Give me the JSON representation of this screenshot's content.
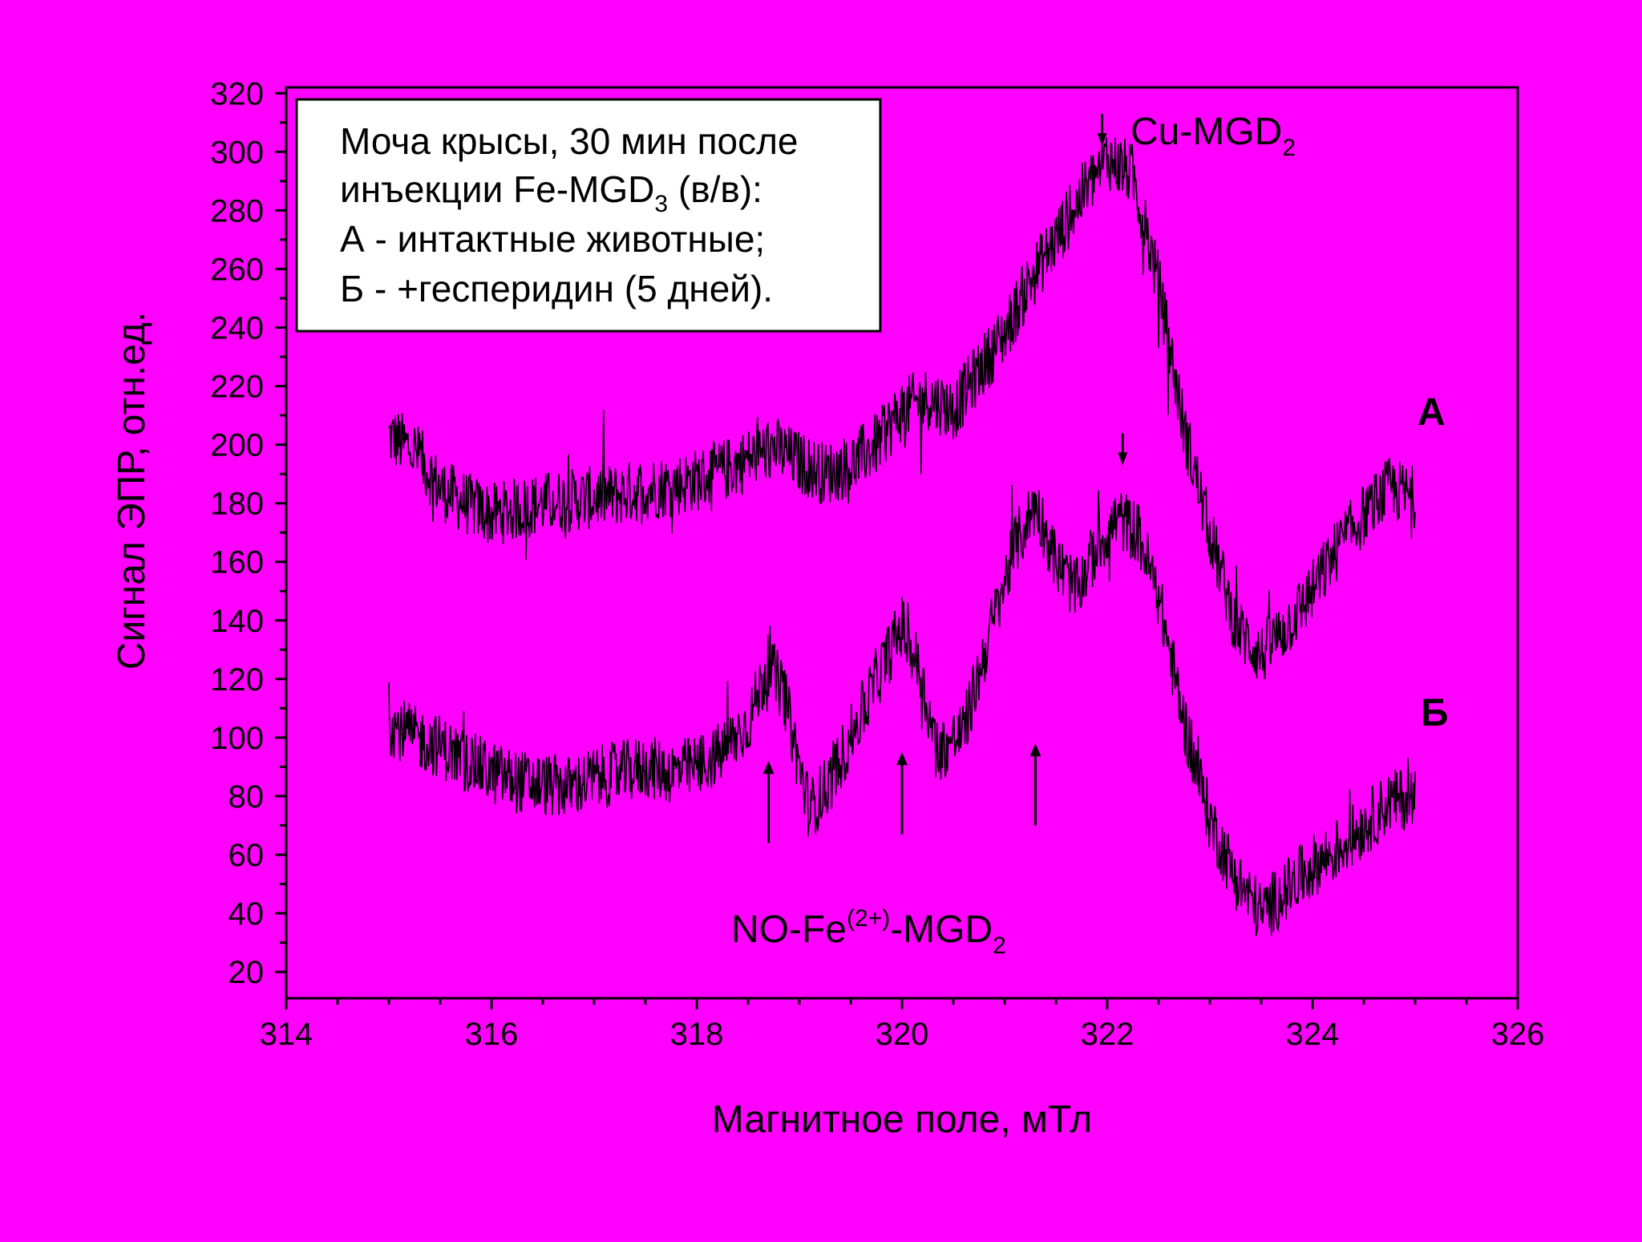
{
  "colors": {
    "background": "#ff00ff",
    "ink": "#000000",
    "legend_box": "#ffffff"
  },
  "chart_data": {
    "type": "line",
    "xlabel": "Магнитное поле, мТл",
    "ylabel": "Сигнал ЭПР, отн.ед.",
    "xlim": [
      314,
      326
    ],
    "ylim": [
      11,
      322
    ],
    "x_ticks": [
      "314",
      "316",
      "318",
      "320",
      "322",
      "324",
      "326"
    ],
    "y_ticks": [
      "20",
      "40",
      "60",
      "80",
      "100",
      "120",
      "140",
      "160",
      "180",
      "200",
      "220",
      "240",
      "260",
      "280",
      "300",
      "320"
    ],
    "grid": false,
    "legend": {
      "placement": "top-left",
      "lines": [
        {
          "text": "Моча крысы, 30 мин после",
          "sub": ""
        },
        {
          "text": "инъекции Fe-MGD",
          "sub": "3",
          "tail": " (в/в):"
        },
        {
          "text": "А - интактные животные;",
          "sub": ""
        },
        {
          "text": "Б - +гесперидин (5 дней).",
          "sub": ""
        }
      ]
    },
    "series": [
      {
        "name": "А",
        "x": [
          315.0,
          315.25,
          315.5,
          315.75,
          316.0,
          316.25,
          316.5,
          316.75,
          317.0,
          317.25,
          317.5,
          317.75,
          318.0,
          318.25,
          318.5,
          318.75,
          319.0,
          319.25,
          319.5,
          319.75,
          320.0,
          320.25,
          320.5,
          320.75,
          321.0,
          321.25,
          321.5,
          321.75,
          322.0,
          322.25,
          322.5,
          322.75,
          323.0,
          323.25,
          323.5,
          323.75,
          324.0,
          324.25,
          324.5,
          324.75,
          325.0
        ],
        "y": [
          203,
          198,
          185,
          180,
          176,
          178,
          180,
          181,
          182,
          183,
          185,
          186,
          188,
          191,
          195,
          199,
          194,
          190,
          193,
          200,
          212,
          216,
          212,
          225,
          238,
          256,
          270,
          285,
          298,
          292,
          255,
          205,
          170,
          138,
          128,
          138,
          150,
          165,
          176,
          185,
          182
        ]
      },
      {
        "name": "Б",
        "x": [
          315.0,
          315.25,
          315.5,
          315.75,
          316.0,
          316.25,
          316.5,
          316.75,
          317.0,
          317.25,
          317.5,
          317.75,
          318.0,
          318.25,
          318.5,
          318.7,
          318.85,
          319.0,
          319.1,
          319.3,
          319.5,
          319.75,
          320.0,
          320.15,
          320.35,
          320.6,
          320.85,
          321.1,
          321.3,
          321.5,
          321.7,
          321.9,
          322.1,
          322.3,
          322.5,
          322.75,
          323.0,
          323.25,
          323.5,
          323.75,
          324.0,
          324.25,
          324.5,
          324.75,
          325.0
        ],
        "y": [
          105,
          100,
          97,
          92,
          88,
          85,
          84,
          83,
          86,
          88,
          90,
          88,
          90,
          95,
          105,
          125,
          115,
          90,
          75,
          85,
          100,
          120,
          138,
          125,
          95,
          102,
          135,
          165,
          180,
          160,
          150,
          165,
          175,
          170,
          148,
          105,
          72,
          52,
          40,
          48,
          56,
          62,
          70,
          78,
          80
        ]
      }
    ],
    "annotations": [
      {
        "text": "Cu-MGD",
        "sub": "2",
        "sup": "",
        "tail": ""
      },
      {
        "text": "NO-Fe",
        "sup": "(2+)",
        "mid": "-MGD",
        "sub": "2"
      },
      {
        "text": "А"
      },
      {
        "text": "Б"
      }
    ],
    "arrows": {
      "down": [
        {
          "x": 321.95,
          "y": 302
        },
        {
          "x": 322.15,
          "y": 193
        }
      ],
      "up": [
        {
          "x": 318.7,
          "y": 64
        },
        {
          "x": 320.0,
          "y": 67
        },
        {
          "x": 321.3,
          "y": 70
        }
      ]
    }
  }
}
